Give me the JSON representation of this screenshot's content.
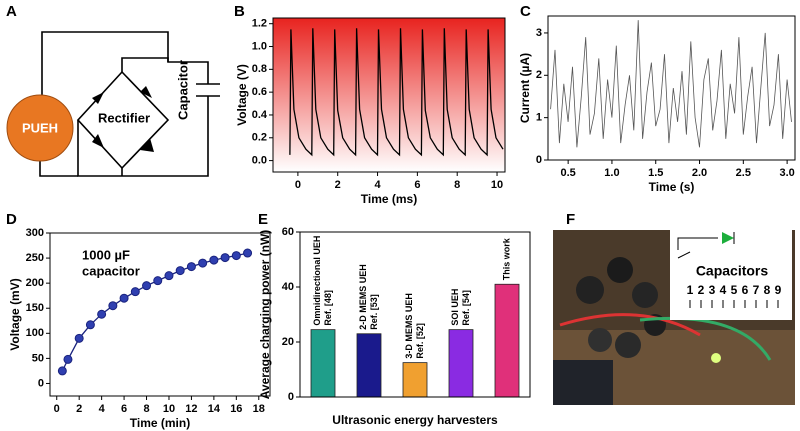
{
  "panel_labels": [
    "A",
    "B",
    "C",
    "D",
    "E",
    "F"
  ],
  "diagram": {
    "source": "PUEH",
    "rectifier": "Rectifier",
    "capacitor": "Capacitor"
  },
  "photo": {
    "title": "Capacitors",
    "numbers": [
      "1",
      "2",
      "3",
      "4",
      "5",
      "6",
      "7",
      "8",
      "9"
    ]
  },
  "chart_data": [
    {
      "type": "line",
      "xlabel": "Time (ms)",
      "ylabel": "Voltage (V)",
      "color": "#000000",
      "x": [
        -0.4,
        -0.35,
        -0.2,
        0.05,
        0.4,
        0.7,
        0.75,
        0.9,
        1.15,
        1.5,
        1.8,
        1.85,
        2.0,
        2.25,
        2.6,
        2.9,
        2.95,
        3.1,
        3.35,
        3.7,
        4.0,
        4.05,
        4.2,
        4.45,
        4.8,
        5.1,
        5.15,
        5.3,
        5.55,
        5.9,
        6.2,
        6.25,
        6.4,
        6.65,
        7.0,
        7.3,
        7.35,
        7.5,
        7.75,
        8.1,
        8.4,
        8.45,
        8.6,
        8.85,
        9.2,
        9.5,
        9.55,
        9.7,
        9.95,
        10.3
      ],
      "values": [
        0.05,
        1.15,
        0.45,
        0.2,
        0.1,
        0.05,
        1.16,
        0.45,
        0.2,
        0.1,
        0.05,
        1.15,
        0.44,
        0.2,
        0.1,
        0.05,
        1.16,
        0.45,
        0.2,
        0.1,
        0.05,
        1.15,
        0.45,
        0.2,
        0.1,
        0.05,
        1.16,
        0.45,
        0.2,
        0.1,
        0.05,
        1.15,
        0.44,
        0.2,
        0.1,
        0.05,
        1.16,
        0.45,
        0.2,
        0.1,
        0.05,
        1.15,
        0.45,
        0.2,
        0.1,
        0.05,
        1.15,
        0.45,
        0.2,
        0.1
      ],
      "xlim": [
        -1.25,
        10.4
      ],
      "xticks": [
        0,
        2,
        4,
        6,
        8,
        10
      ],
      "ylim": [
        -0.1,
        1.25
      ],
      "yticks": [
        {
          "value": 0,
          "label": "0.0"
        },
        0.2,
        0.4,
        0.6,
        0.8,
        {
          "value": 1,
          "label": "1.0"
        },
        1.2
      ]
    },
    {
      "type": "line",
      "xlabel": "Time (s)",
      "ylabel": "Current (µA)",
      "color": "#555555",
      "x": [
        0.3,
        0.35,
        0.4,
        0.45,
        0.5,
        0.55,
        0.6,
        0.65,
        0.7,
        0.75,
        0.8,
        0.85,
        0.9,
        0.95,
        1.0,
        1.05,
        1.1,
        1.15,
        1.2,
        1.25,
        1.3,
        1.35,
        1.4,
        1.45,
        1.5,
        1.55,
        1.6,
        1.65,
        1.7,
        1.75,
        1.8,
        1.85,
        1.9,
        1.95,
        2.0,
        2.05,
        2.1,
        2.15,
        2.2,
        2.25,
        2.3,
        2.35,
        2.4,
        2.45,
        2.5,
        2.55,
        2.6,
        2.65,
        2.7,
        2.75,
        2.8,
        2.85,
        2.9,
        2.95,
        3.0,
        3.05
      ],
      "values": [
        1.2,
        2.6,
        0.4,
        1.8,
        0.9,
        2.2,
        0.3,
        1.5,
        2.9,
        0.6,
        1.1,
        2.4,
        0.5,
        1.9,
        1.0,
        2.7,
        0.4,
        1.3,
        2.0,
        0.7,
        3.3,
        0.5,
        1.6,
        2.3,
        0.8,
        1.2,
        2.5,
        0.4,
        1.7,
        0.9,
        2.1,
        0.6,
        2.8,
        1.0,
        0.3,
        1.9,
        2.4,
        0.7,
        1.4,
        2.6,
        0.5,
        1.8,
        1.1,
        2.9,
        0.6,
        1.5,
        2.2,
        0.4,
        1.7,
        3.0,
        0.8,
        1.3,
        2.5,
        0.5,
        1.9,
        0.9
      ],
      "xlim": [
        0.27,
        3.09
      ],
      "xticks": [
        0.5,
        {
          "value": 1,
          "label": "1.0"
        },
        1.5,
        {
          "value": 2,
          "label": "2.0"
        },
        2.5,
        {
          "value": 3,
          "label": "3.0"
        }
      ],
      "ylim": [
        0,
        3.4
      ],
      "yticks": [
        0,
        1,
        2,
        3
      ]
    },
    {
      "type": "line",
      "markers": true,
      "xlabel": "Time (min)",
      "ylabel": "Voltage (mV)",
      "color": "#1a237e",
      "marker_color": "#2f3fb0",
      "annotation": [
        "1000 µF",
        "capacitor"
      ],
      "x": [
        0.5,
        1,
        2,
        3,
        4,
        5,
        6,
        7,
        8,
        9,
        10,
        11,
        12,
        13,
        14,
        15,
        16,
        17
      ],
      "values": [
        25,
        48,
        90,
        117,
        138,
        155,
        170,
        183,
        195,
        205,
        215,
        225,
        233,
        240,
        246,
        251,
        255,
        260
      ],
      "xlim": [
        -0.6,
        19
      ],
      "xticks": [
        0,
        2,
        4,
        6,
        8,
        10,
        12,
        14,
        16,
        18
      ],
      "ylim": [
        -25,
        300
      ],
      "yticks": [
        0,
        50,
        100,
        150,
        200,
        250,
        300
      ]
    },
    {
      "type": "bar",
      "xlabel": "Ultrasonic energy harvesters",
      "ylabel": "Average charging power (nW)",
      "categories": [
        [
          "Omnidirectional UEH",
          "Ref. [48]"
        ],
        [
          "2-D MEMS UEH",
          "Ref. [53]"
        ],
        [
          "3-D MEMS UEH",
          "Ref. [52]"
        ],
        [
          "SOI UEH",
          "Ref. [54]"
        ],
        [
          "This work"
        ]
      ],
      "values": [
        24.5,
        23,
        12.5,
        24.5,
        41
      ],
      "colors": [
        "#1f9e8a",
        "#1a1a8c",
        "#f0a030",
        "#8a2be2",
        "#e0307a"
      ],
      "ylim": [
        0,
        60
      ],
      "yticks": [
        0,
        20,
        40,
        60
      ]
    }
  ]
}
